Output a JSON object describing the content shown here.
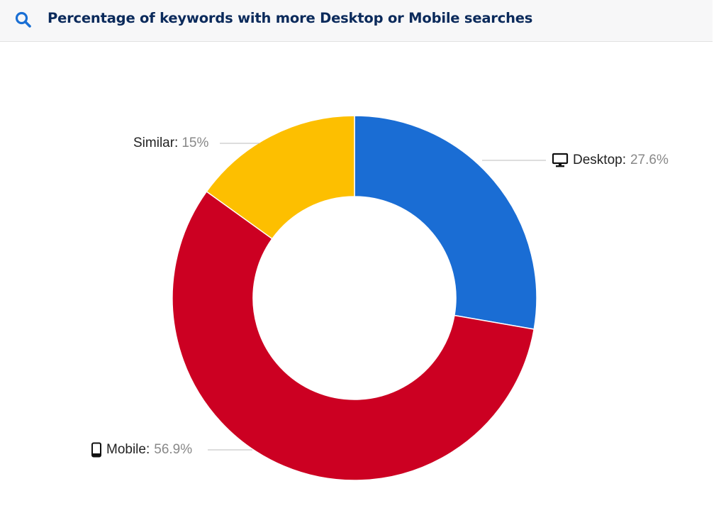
{
  "header": {
    "icon": "search-icon",
    "title": "Percentage of keywords with more Desktop or Mobile searches"
  },
  "chart_data": {
    "type": "pie",
    "variant": "donut",
    "title": "Percentage of keywords with more Desktop or Mobile searches",
    "start": "top",
    "direction": "clockwise",
    "slices": [
      {
        "name": "Desktop",
        "label": "Desktop:",
        "value": 27.6,
        "value_label": "27.6%",
        "color": "#1a6dd4",
        "icon": "desktop-icon"
      },
      {
        "name": "Mobile",
        "label": "Mobile:",
        "value": 56.9,
        "value_label": "56.9%",
        "color": "#cc0022",
        "icon": "mobile-icon"
      },
      {
        "name": "Similar",
        "label": "Similar:",
        "value": 15,
        "value_label": "15%",
        "color": "#fdbf00",
        "icon": ""
      }
    ]
  }
}
